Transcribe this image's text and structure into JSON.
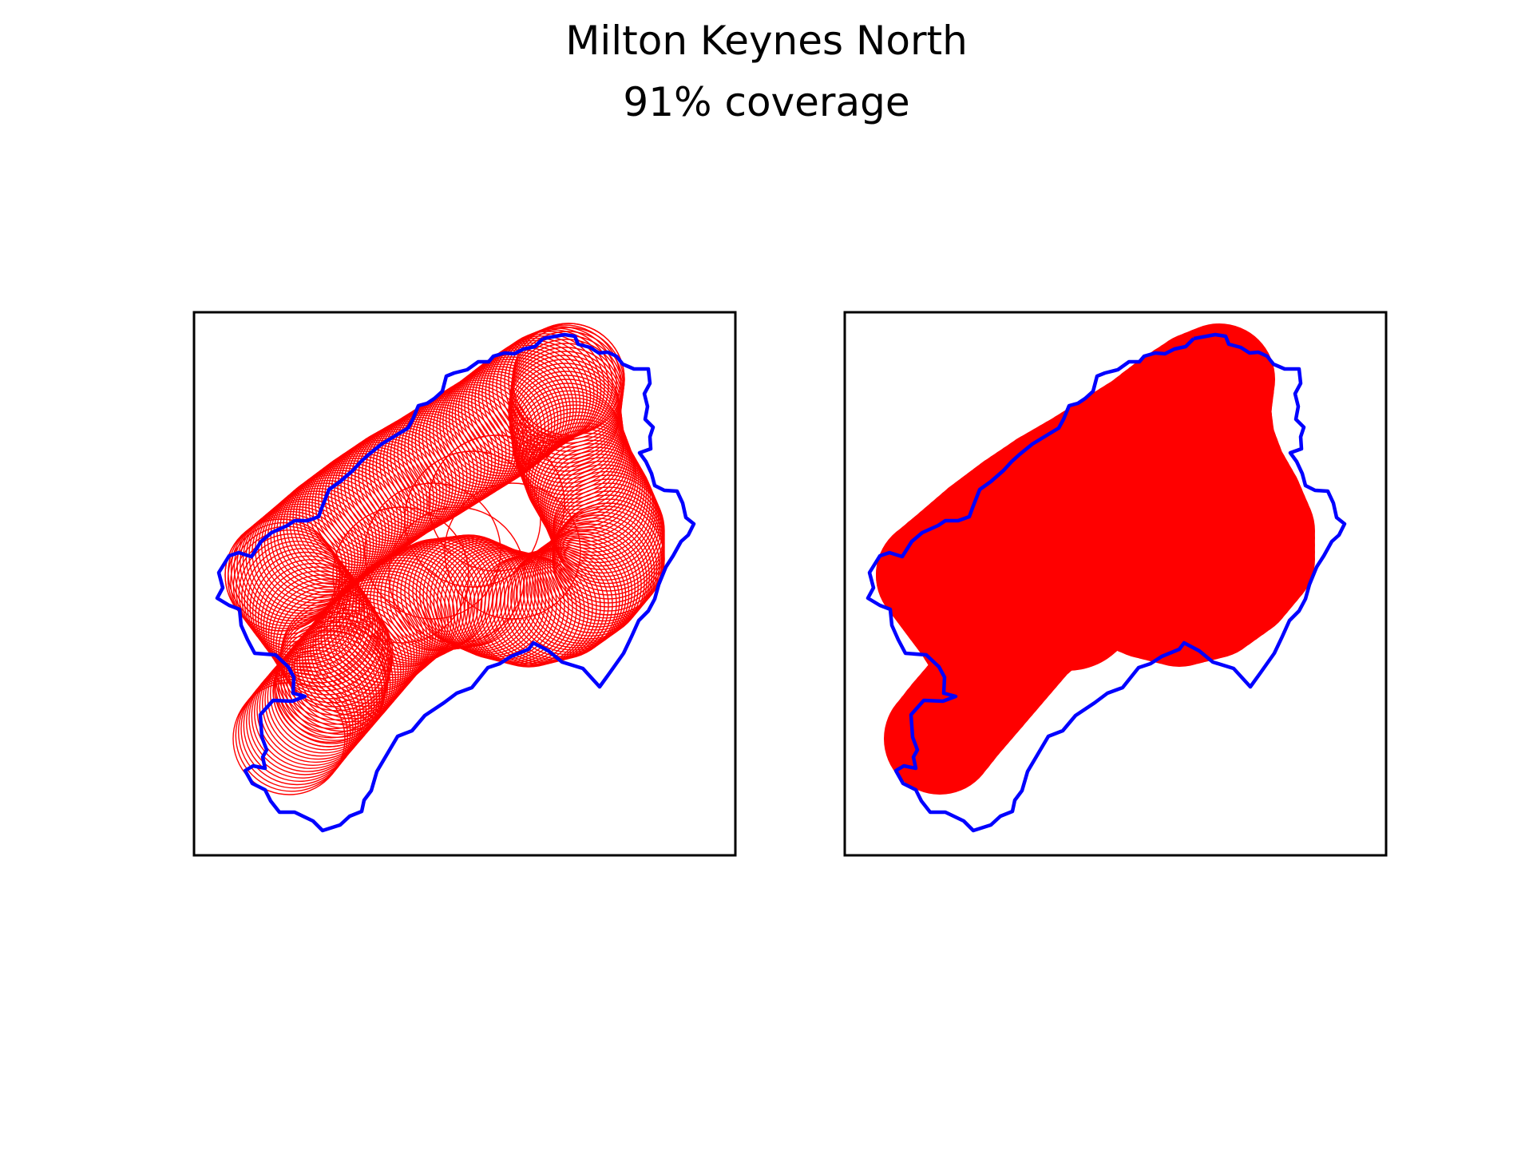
{
  "title": "Milton Keynes North",
  "subtitle": "91% coverage",
  "colors": {
    "boundary": "#0000ff",
    "coverage": "#ff0000",
    "frame": "#000000",
    "background": "#ffffff"
  },
  "panels": [
    {
      "id": "left",
      "style": "circle outlines"
    },
    {
      "id": "right",
      "style": "filled circles"
    }
  ]
}
